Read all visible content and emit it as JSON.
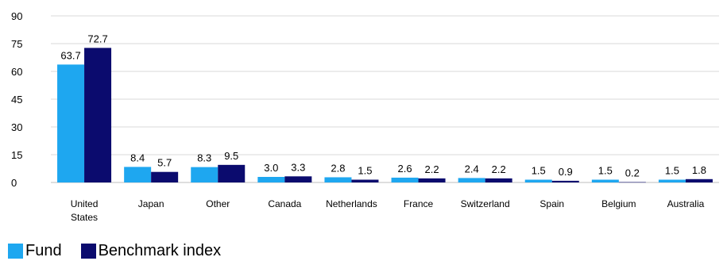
{
  "chart_data": {
    "type": "bar",
    "categories": [
      "United\nStates",
      "Japan",
      "Other",
      "Canada",
      "Netherlands",
      "France",
      "Switzerland",
      "Spain",
      "Belgium",
      "Australia"
    ],
    "series": [
      {
        "name": "Fund",
        "color": "#1ea7f0",
        "values": [
          63.7,
          8.4,
          8.3,
          3.0,
          2.8,
          2.6,
          2.4,
          1.5,
          1.5,
          1.5
        ],
        "labels": [
          "63.7",
          "8.4",
          "8.3",
          "3.0",
          "2.8",
          "2.6",
          "2.4",
          "1.5",
          "1.5",
          "1.5"
        ]
      },
      {
        "name": "Benchmark index",
        "color": "#0b0b6e",
        "values": [
          72.7,
          5.7,
          9.5,
          3.3,
          1.5,
          2.2,
          2.2,
          0.9,
          0.2,
          1.8
        ],
        "labels": [
          "72.7",
          "5.7",
          "9.5",
          "3.3",
          "1.5",
          "2.2",
          "2.2",
          "0.9",
          "0.2",
          "1.8"
        ]
      }
    ],
    "ylim": [
      0,
      90
    ],
    "yticks": [
      "0",
      "15",
      "30",
      "45",
      "60",
      "75",
      "90"
    ],
    "grid": true,
    "legend_position": "bottom-left"
  }
}
